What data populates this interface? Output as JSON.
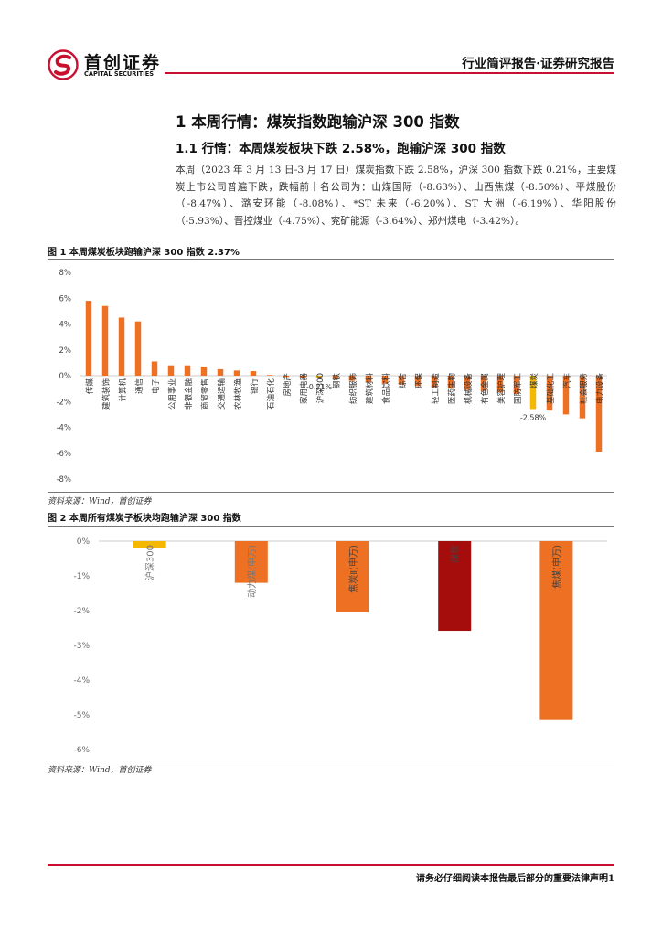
{
  "header": {
    "logo_cn": "首创证券",
    "logo_en": "CAPITAL SECURITIES",
    "report_type": "行业简评报告·证券研究报告"
  },
  "section": {
    "h1": "1 本周行情：煤炭指数跑输沪深 300 指数",
    "h2": "1.1 行情：本周煤炭板块下跌 2.58%，跑输沪深 300 指数",
    "paragraph": "本周（2023 年 3 月 13 日-3 月 17 日）煤炭指数下跌 2.58%，沪深 300 指数下跌 0.21%，主要煤炭上市公司普遍下跌，跌幅前十名公司为：山煤国际（-8.63%）、山西焦煤（-8.50%）、平煤股份（-8.47%）、潞安环能（-8.08%）、*ST 未来（-6.20%）、ST 大洲（-6.19%）、华阳股份（-5.93%）、晋控煤业（-4.75%）、兖矿能源（-3.64%）、郑州煤电（-3.42%）。"
  },
  "figure1": {
    "title": "图 1 本周煤炭板块跑输沪深 300 指数 2.37%",
    "source": "资料来源：Wind，首创证券"
  },
  "figure2": {
    "title": "图 2 本周所有煤炭子板块均跑输沪深 300 指数",
    "source": "资料来源：Wind，首创证券"
  },
  "footer": {
    "disclaimer": "请务必仔细阅读本报告最后部分的重要法律声明1"
  },
  "colors": {
    "brand_red": "#c8102e",
    "bar_orange": "#ee7022",
    "highlight_yellow": "#f5b800",
    "highlight_dark_red": "#a50d0d"
  },
  "chart_data": [
    {
      "type": "bar",
      "title": "图 1 本周煤炭板块跑输沪深 300 指数 2.37%",
      "categories": [
        "传媒",
        "建筑装饰",
        "计算机",
        "通信",
        "电子",
        "公用事业",
        "非银金融",
        "商贸零售",
        "交通运输",
        "农林牧渔",
        "银行",
        "石油石化",
        "房地产",
        "家用电器",
        "沪深300",
        "钢铁",
        "纺织服饰",
        "建筑材料",
        "食品饮料",
        "综合",
        "环保",
        "轻工制造",
        "医药生物",
        "机械设备",
        "有色金属",
        "美容护理",
        "国防军工",
        "煤炭",
        "基础化工",
        "汽车",
        "社会服务",
        "电力设备"
      ],
      "values": [
        5.8,
        5.4,
        4.5,
        4.2,
        1.1,
        0.8,
        0.8,
        0.7,
        0.5,
        0.4,
        0.35,
        0.05,
        -0.1,
        -0.15,
        -0.21,
        -0.3,
        -0.4,
        -0.5,
        -0.6,
        -0.7,
        -0.8,
        -0.9,
        -1.0,
        -1.1,
        -1.2,
        -1.3,
        -1.4,
        -2.58,
        -2.7,
        -3.0,
        -3.3,
        -5.9
      ],
      "highlights": {
        "沪深300": "yellow",
        "煤炭": "yellow"
      },
      "data_labels": {
        "沪深300": "-0.21%",
        "煤炭": "-2.58%"
      },
      "yticks": [
        "8%",
        "6%",
        "4%",
        "2%",
        "0%",
        "-2%",
        "-4%",
        "-6%",
        "-8%"
      ],
      "ylim": [
        -8,
        8
      ]
    },
    {
      "type": "bar",
      "title": "图 2 本周所有煤炭子板块均跑输沪深 300 指数",
      "categories": [
        "沪深300",
        "动力煤(申万)",
        "焦炭Ⅱ(申万)",
        "煤炭",
        "焦煤(申万)"
      ],
      "values": [
        -0.21,
        -1.2,
        -2.05,
        -2.58,
        -5.15
      ],
      "bar_colors": [
        "yellow",
        "orange",
        "orange",
        "darkred",
        "orange"
      ],
      "yticks": [
        "0%",
        "-1%",
        "-2%",
        "-3%",
        "-4%",
        "-5%",
        "-6%"
      ],
      "ylim": [
        -6,
        0
      ]
    }
  ]
}
